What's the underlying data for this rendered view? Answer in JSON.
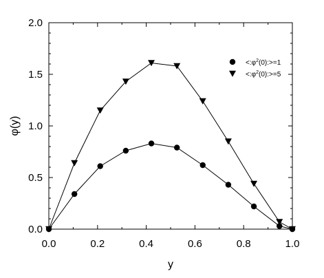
{
  "chart_data": {
    "type": "line",
    "title": "",
    "xlabel": "y",
    "ylabel": "φ(y)",
    "xlim": [
      0,
      1
    ],
    "ylim": [
      0,
      2
    ],
    "x_ticks": [
      "0.0",
      "0.2",
      "0.4",
      "0.6",
      "0.8",
      "1.0"
    ],
    "y_ticks": [
      "0.0",
      "0.5",
      "1.0",
      "1.5",
      "2.0"
    ],
    "grid": false,
    "legend_position": "top-right",
    "series": [
      {
        "name": "<:φ²(0):>=1",
        "legend_parts": {
          "pre": "<:φ",
          "sup": "2",
          "post": "(0):>=1"
        },
        "marker": "circle",
        "color": "#000000",
        "x": [
          0.0,
          0.105,
          0.211,
          0.316,
          0.421,
          0.526,
          0.632,
          0.737,
          0.842,
          0.947,
          1.0
        ],
        "y": [
          0.0,
          0.34,
          0.61,
          0.76,
          0.83,
          0.79,
          0.62,
          0.43,
          0.22,
          0.03,
          0.0
        ]
      },
      {
        "name": "<:φ²(0):>=5",
        "legend_parts": {
          "pre": "<:φ",
          "sup": "2",
          "post": "(0):>=5"
        },
        "marker": "triangle-down",
        "color": "#000000",
        "x": [
          0.0,
          0.105,
          0.211,
          0.316,
          0.421,
          0.526,
          0.632,
          0.737,
          0.842,
          0.947,
          1.0
        ],
        "y": [
          0.0,
          0.64,
          1.15,
          1.43,
          1.61,
          1.58,
          1.24,
          0.85,
          0.44,
          0.07,
          0.0
        ]
      }
    ]
  }
}
